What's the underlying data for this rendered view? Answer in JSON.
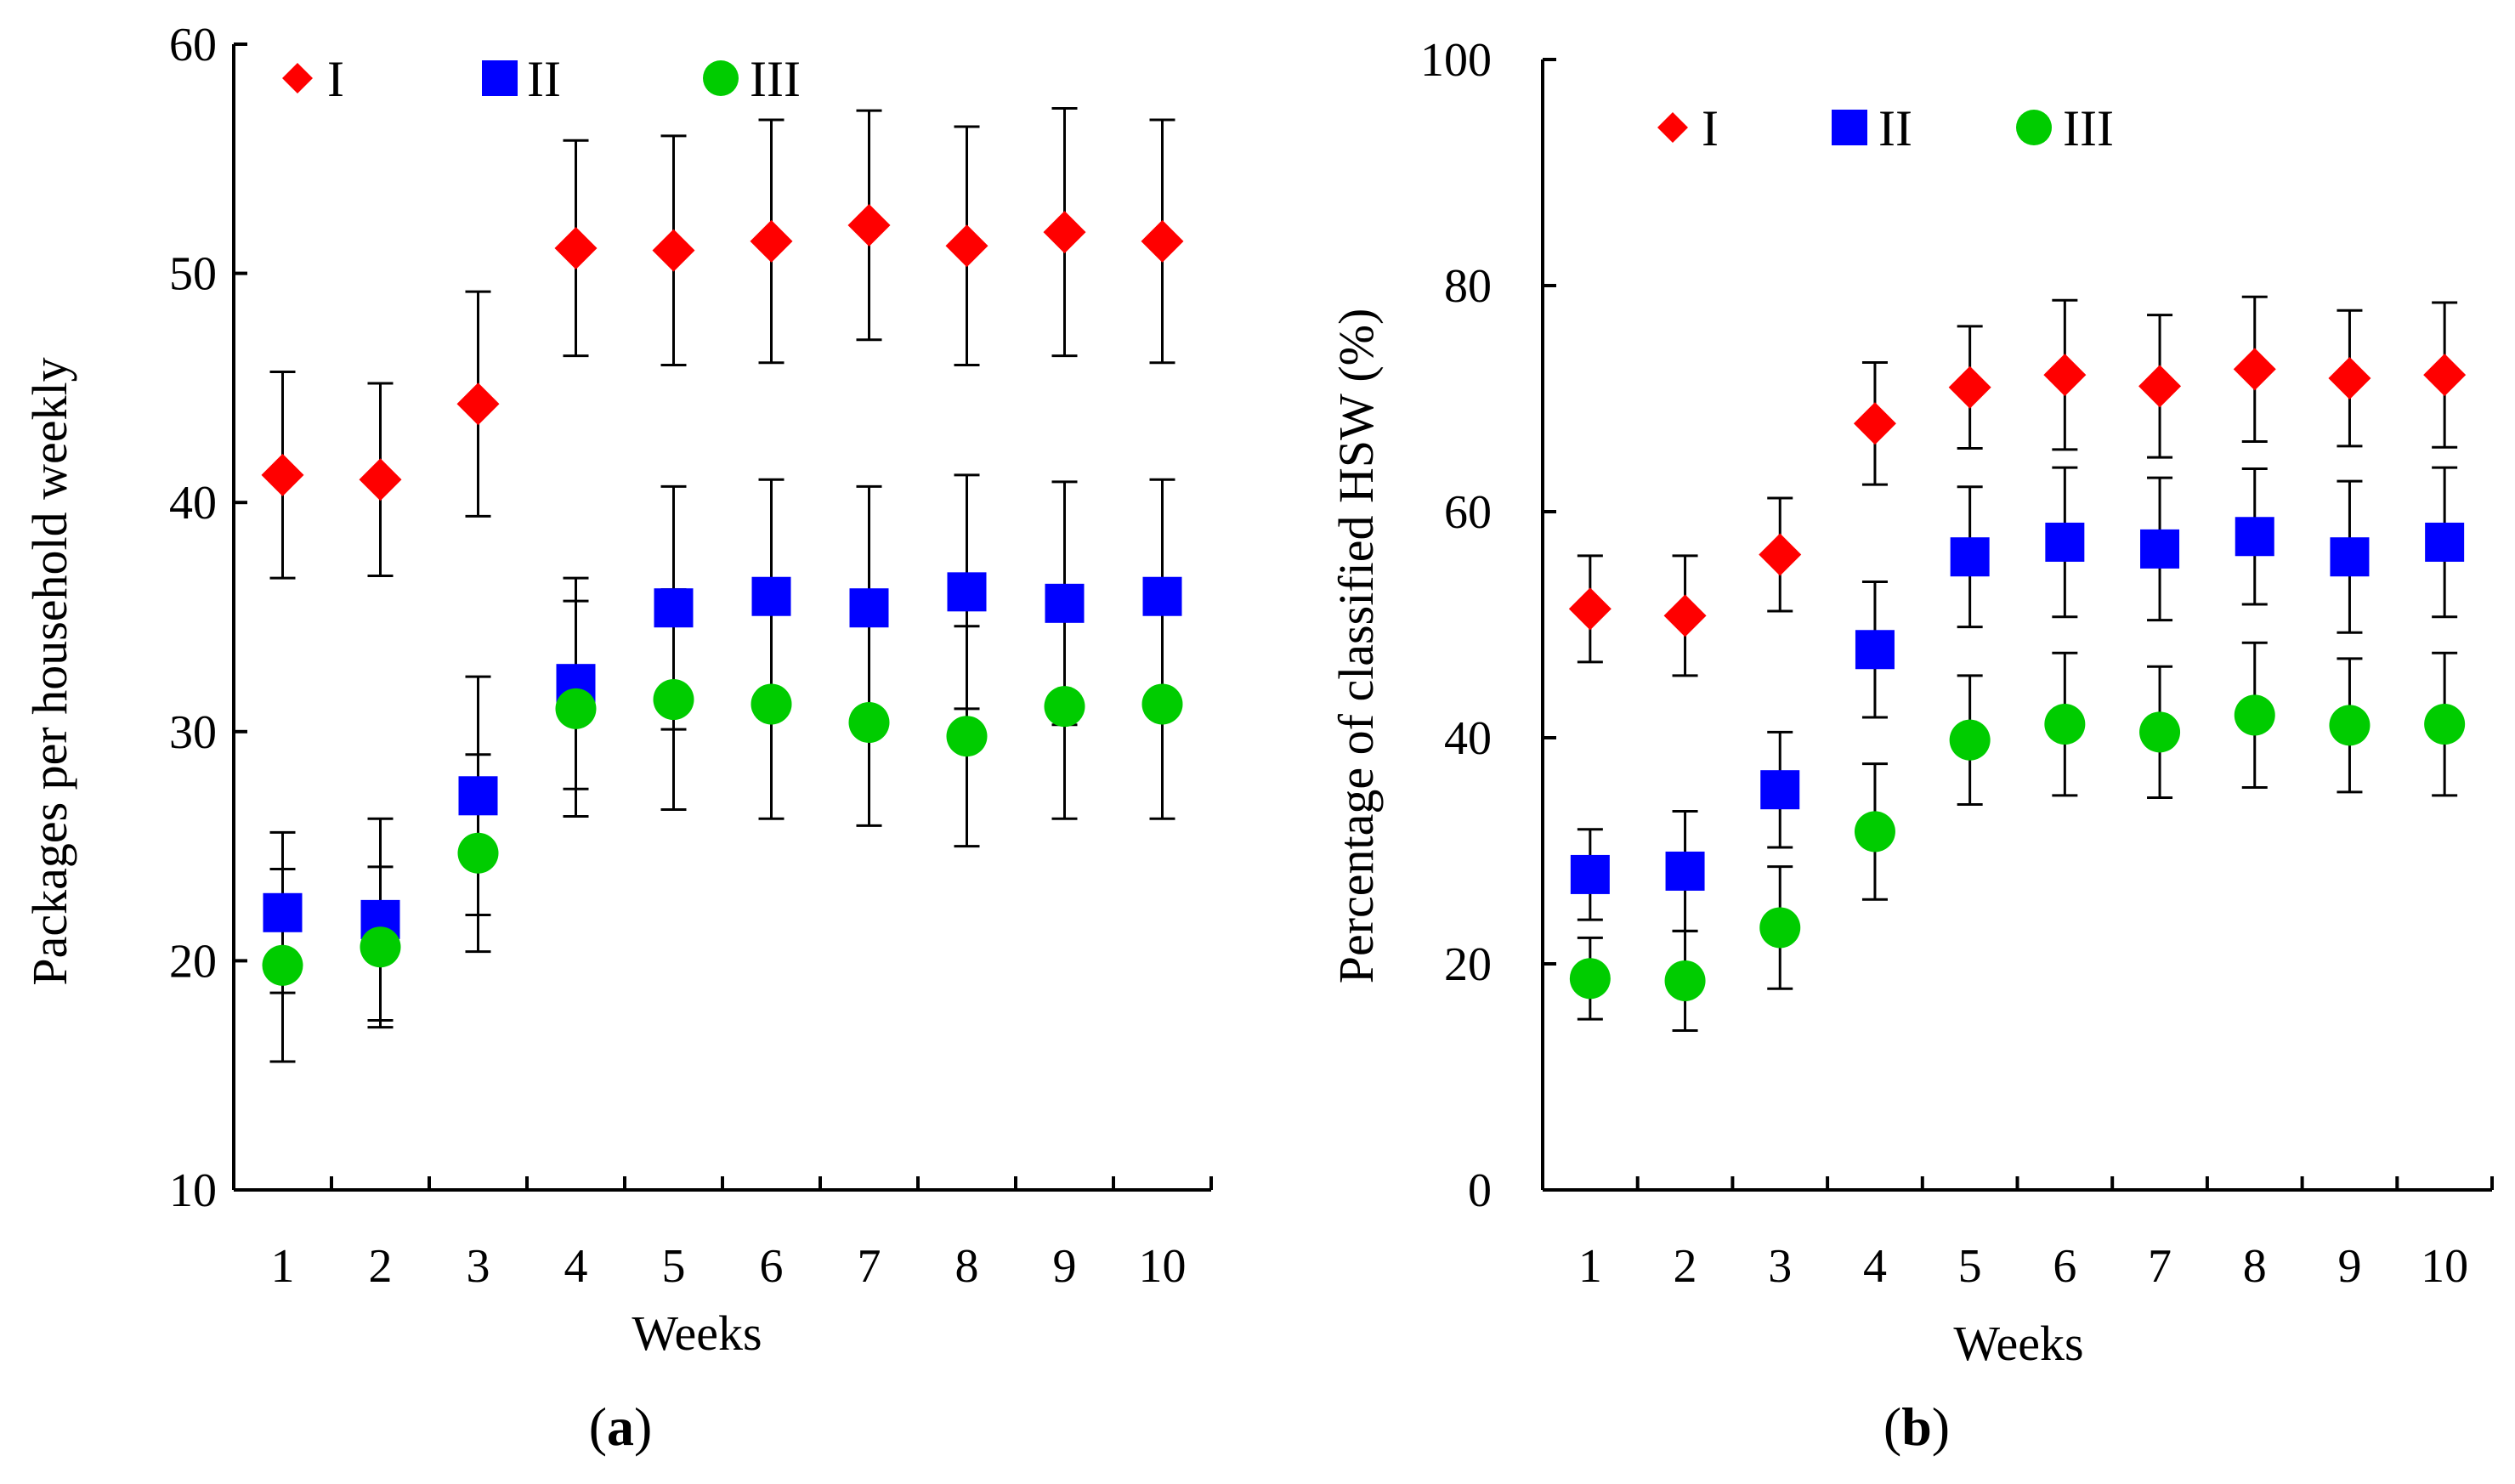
{
  "panels": [
    {
      "id": "a",
      "caption_open": "(",
      "caption_letter": "a",
      "caption_close": ")"
    },
    {
      "id": "b",
      "caption_open": "(",
      "caption_letter": "b",
      "caption_close": ")"
    }
  ],
  "chart_data": [
    {
      "type": "scatter",
      "title": "",
      "xlabel": "Weeks",
      "ylabel": "Packages per household  weekly",
      "categories": [
        "1",
        "2",
        "3",
        "4",
        "5",
        "6",
        "7",
        "8",
        "9",
        "10"
      ],
      "ylim": [
        10,
        60
      ],
      "yticks": [
        10,
        20,
        30,
        40,
        50,
        60
      ],
      "error_bars": true,
      "legend_position": "top-left",
      "series": [
        {
          "name": "I",
          "marker": "diamond",
          "color": "#ff0000",
          "values": [
            41.2,
            41.0,
            44.3,
            51.1,
            51.0,
            51.4,
            52.1,
            51.2,
            51.8,
            51.4
          ],
          "errors": [
            4.5,
            4.2,
            4.9,
            4.7,
            5.0,
            5.3,
            5.0,
            5.2,
            5.4,
            5.3
          ]
        },
        {
          "name": "II",
          "marker": "square",
          "color": "#0000ff",
          "values": [
            22.1,
            21.8,
            27.2,
            32.1,
            35.4,
            35.9,
            35.4,
            36.1,
            35.6,
            35.9
          ],
          "errors": [
            3.5,
            4.4,
            5.2,
            4.6,
            5.3,
            5.1,
            5.3,
            5.1,
            5.3,
            5.1
          ]
        },
        {
          "name": "III",
          "marker": "circle",
          "color": "#00cc00",
          "values": [
            19.8,
            20.6,
            24.7,
            31.0,
            31.4,
            31.2,
            30.4,
            29.8,
            31.1,
            31.2
          ],
          "errors": [
            4.2,
            3.5,
            4.3,
            4.7,
            4.8,
            5.0,
            4.5,
            4.8,
            4.9,
            5.0
          ]
        }
      ]
    },
    {
      "type": "scatter",
      "title": "",
      "xlabel": "Weeks",
      "ylabel": "Percentage of classified HSW (%)",
      "categories": [
        "1",
        "2",
        "3",
        "4",
        "5",
        "6",
        "7",
        "8",
        "9",
        "10"
      ],
      "ylim": [
        0,
        100
      ],
      "yticks": [
        0,
        20,
        40,
        60,
        80,
        100
      ],
      "error_bars": true,
      "legend_position": "top-left",
      "series": [
        {
          "name": "I",
          "marker": "diamond",
          "color": "#ff0000",
          "values": [
            51.4,
            50.8,
            56.2,
            67.8,
            71.0,
            72.1,
            71.1,
            72.6,
            71.8,
            72.1
          ],
          "errors": [
            4.7,
            5.3,
            5.0,
            5.4,
            5.4,
            6.6,
            6.3,
            6.4,
            6.0,
            6.4
          ]
        },
        {
          "name": "II",
          "marker": "square",
          "color": "#0000ff",
          "values": [
            27.9,
            28.2,
            35.4,
            47.8,
            56.0,
            57.3,
            56.7,
            57.8,
            56.0,
            57.3
          ],
          "errors": [
            4.0,
            5.3,
            5.1,
            6.0,
            6.2,
            6.6,
            6.3,
            6.0,
            6.7,
            6.6
          ]
        },
        {
          "name": "III",
          "marker": "circle",
          "color": "#00cc00",
          "values": [
            18.7,
            18.5,
            23.2,
            31.7,
            39.8,
            41.2,
            40.5,
            42.0,
            41.1,
            41.2
          ],
          "errors": [
            3.6,
            4.4,
            5.4,
            6.0,
            5.7,
            6.3,
            5.8,
            6.4,
            5.9,
            6.3
          ]
        }
      ]
    }
  ]
}
